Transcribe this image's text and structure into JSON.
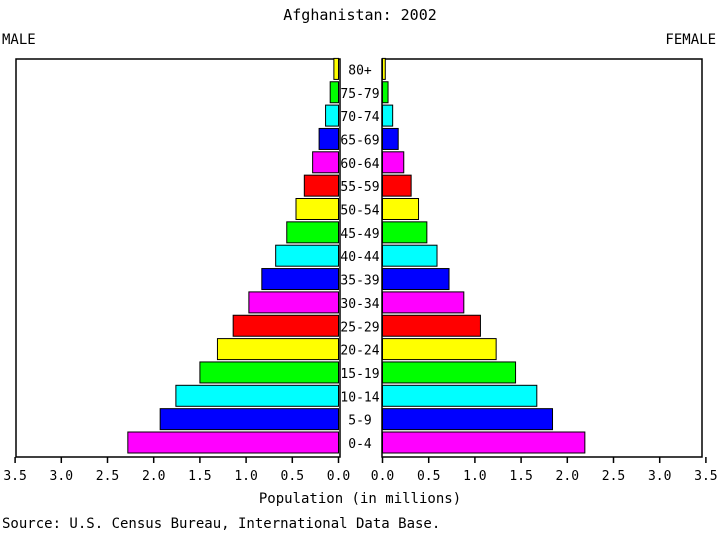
{
  "header": {
    "title": "Afghanistan: 2002",
    "male_label": "MALE",
    "female_label": "FEMALE"
  },
  "footer": {
    "source": "Source: U.S. Census Bureau, International Data Base."
  },
  "chart_data": {
    "type": "bar",
    "orientation": "horizontal-population-pyramid",
    "title": "Afghanistan: 2002",
    "xlabel": "Population (in millions)",
    "ylabel": "",
    "xlim": [
      0,
      3.5
    ],
    "x_ticks": [
      "3.5",
      "3.0",
      "2.5",
      "2.0",
      "1.5",
      "1.0",
      "0.5",
      "0.0"
    ],
    "x_ticks_right": [
      "0.0",
      "0.5",
      "1.0",
      "1.5",
      "2.0",
      "2.5",
      "3.0",
      "3.5"
    ],
    "tick_values": [
      0,
      0.5,
      1.0,
      1.5,
      2.0,
      2.5,
      3.0,
      3.5
    ],
    "categories": [
      "0-4",
      "5-9",
      "10-14",
      "15-19",
      "20-24",
      "25-29",
      "30-34",
      "35-39",
      "40-44",
      "45-49",
      "50-54",
      "55-59",
      "60-64",
      "65-69",
      "70-74",
      "75-79",
      "80+"
    ],
    "series": [
      {
        "name": "MALE",
        "values": [
          2.28,
          1.93,
          1.76,
          1.5,
          1.31,
          1.14,
          0.97,
          0.83,
          0.68,
          0.56,
          0.46,
          0.37,
          0.28,
          0.21,
          0.14,
          0.09,
          0.05
        ]
      },
      {
        "name": "FEMALE",
        "values": [
          2.19,
          1.84,
          1.67,
          1.44,
          1.23,
          1.06,
          0.88,
          0.72,
          0.59,
          0.48,
          0.39,
          0.31,
          0.23,
          0.17,
          0.11,
          0.06,
          0.03
        ]
      }
    ],
    "bar_colors": [
      "#ff00ff",
      "#0000ff",
      "#00ffff",
      "#00ff00",
      "#ffff00",
      "#ff0000",
      "#ff00ff",
      "#0000ff",
      "#00ffff",
      "#00ff00",
      "#ffff00",
      "#ff0000",
      "#ff00ff",
      "#0000ff",
      "#00ffff",
      "#00ff00",
      "#ffff00"
    ],
    "grid": false,
    "legend": "none"
  }
}
